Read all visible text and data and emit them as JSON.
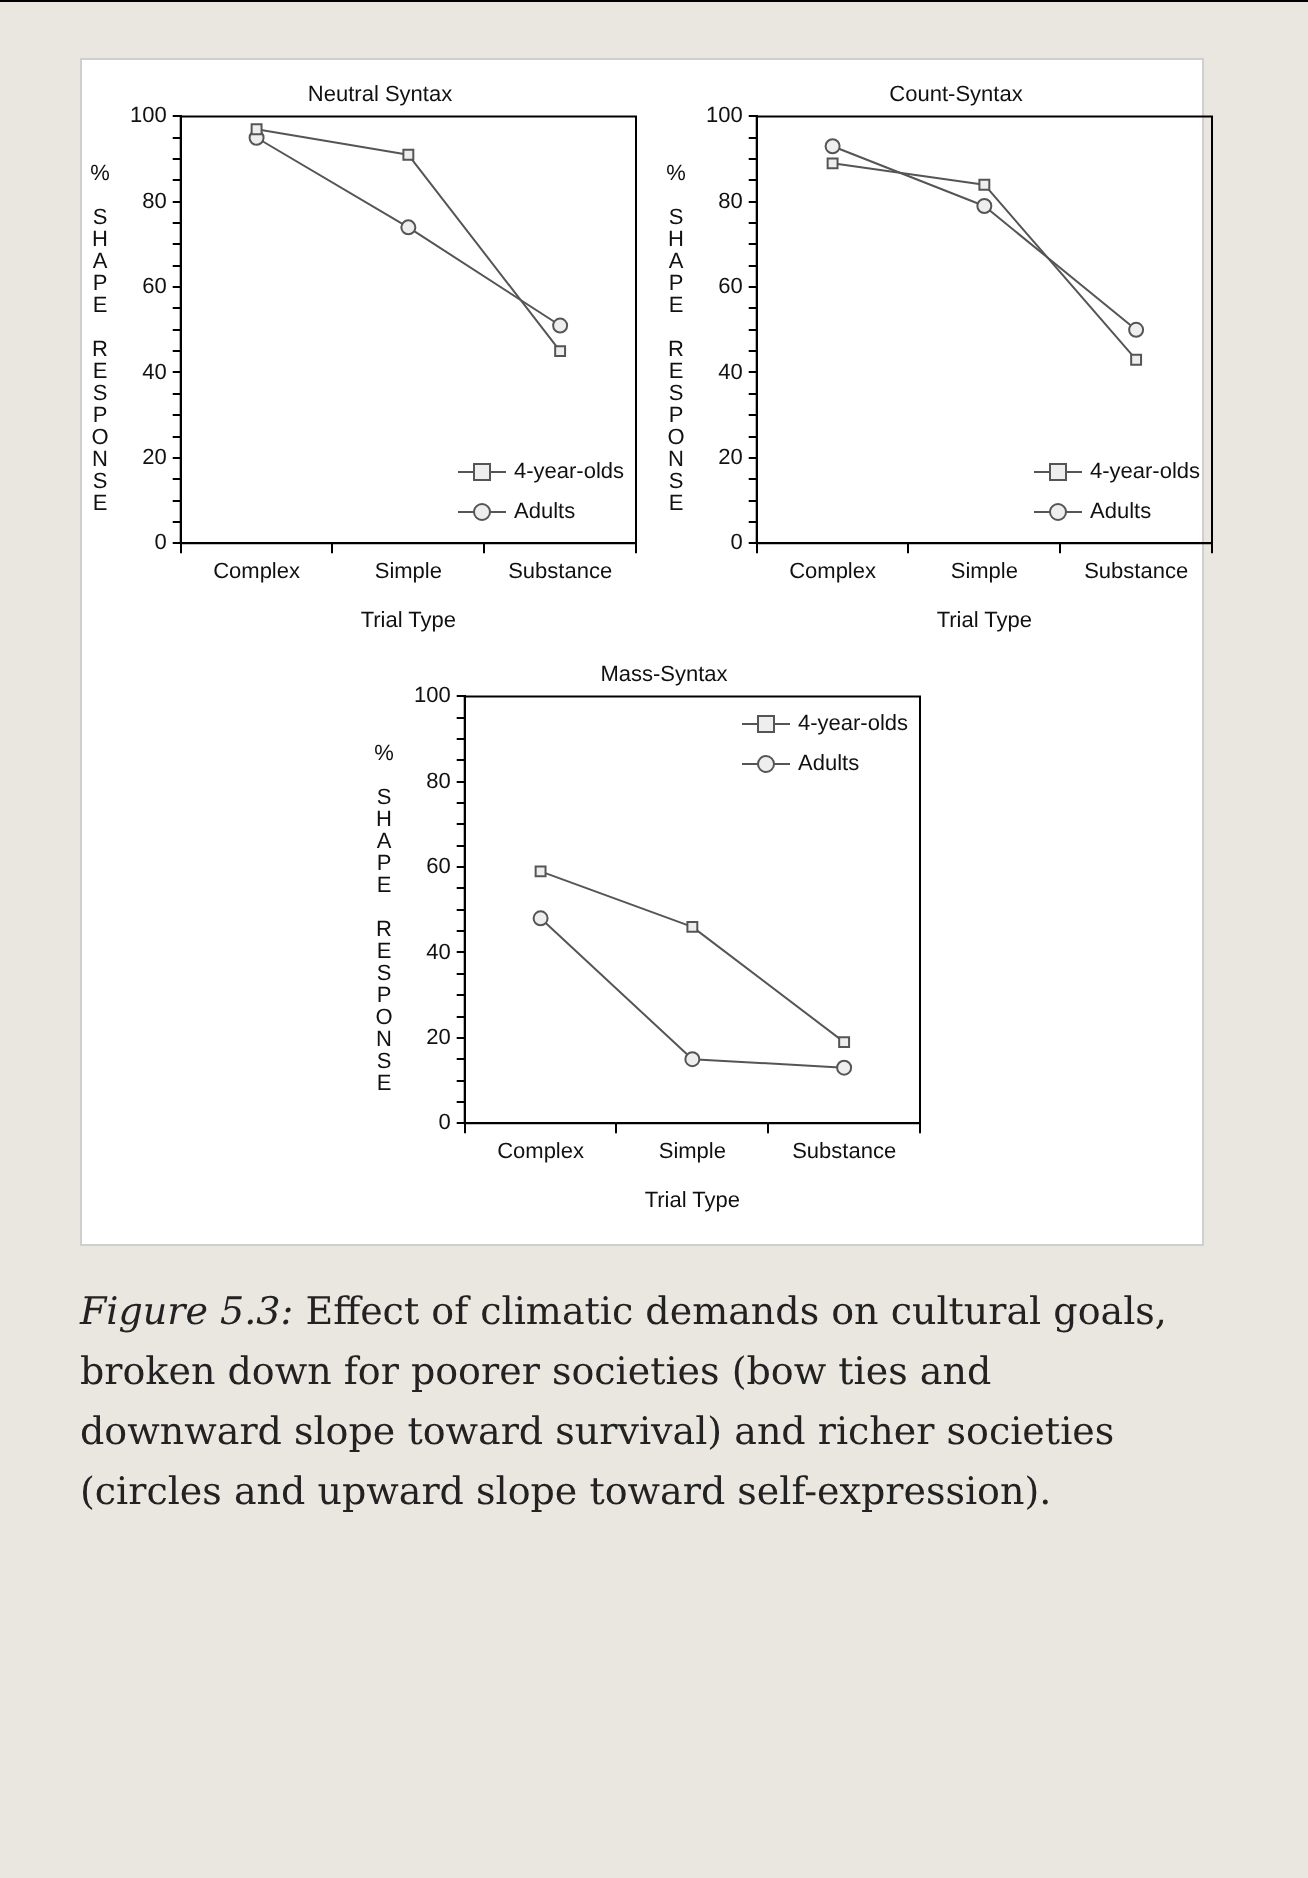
{
  "chart_data": [
    {
      "type": "line",
      "title": "Neutral Syntax",
      "xlabel": "Trial Type",
      "ylabel": "% SHAPE RESPONSE",
      "categories": [
        "Complex",
        "Simple",
        "Substance"
      ],
      "series": [
        {
          "name": "4-year-olds",
          "color": "#555555",
          "marker": "square",
          "values": [
            97,
            91,
            45
          ]
        },
        {
          "name": "Adults",
          "color": "#555555",
          "marker": "circle",
          "values": [
            95,
            74,
            51
          ]
        }
      ],
      "ylim": [
        0,
        100
      ],
      "yticks": [
        0,
        {
          "value": 5,
          "label": null
        },
        {
          "value": 10,
          "label": null
        },
        {
          "value": 15,
          "label": null
        },
        20,
        {
          "value": 25,
          "label": null
        },
        {
          "value": 30,
          "label": null
        },
        {
          "value": 35,
          "label": null
        },
        40,
        {
          "value": 45,
          "label": null
        },
        {
          "value": 50,
          "label": null
        },
        {
          "value": 55,
          "label": null
        },
        60,
        {
          "value": 65,
          "label": null
        },
        {
          "value": 70,
          "label": null
        },
        {
          "value": 75,
          "label": null
        },
        80,
        {
          "value": 85,
          "label": null
        },
        {
          "value": 90,
          "label": null
        },
        {
          "value": 95,
          "label": null
        },
        100
      ],
      "grid": false,
      "legend": "bottom right"
    },
    {
      "type": "line",
      "title": "Count-Syntax",
      "xlabel": "Trial Type",
      "ylabel": "% SHAPE RESPONSE",
      "categories": [
        "Complex",
        "Simple",
        "Substance"
      ],
      "series": [
        {
          "name": "4-year-olds",
          "color": "#555555",
          "marker": "square",
          "values": [
            89,
            84,
            43
          ]
        },
        {
          "name": "Adults",
          "color": "#555555",
          "marker": "circle",
          "values": [
            93,
            79,
            50
          ]
        }
      ],
      "ylim": [
        0,
        100
      ],
      "yticks": [
        0,
        {
          "value": 5,
          "label": null
        },
        {
          "value": 10,
          "label": null
        },
        {
          "value": 15,
          "label": null
        },
        20,
        {
          "value": 25,
          "label": null
        },
        {
          "value": 30,
          "label": null
        },
        {
          "value": 35,
          "label": null
        },
        40,
        {
          "value": 45,
          "label": null
        },
        {
          "value": 50,
          "label": null
        },
        {
          "value": 55,
          "label": null
        },
        60,
        {
          "value": 65,
          "label": null
        },
        {
          "value": 70,
          "label": null
        },
        {
          "value": 75,
          "label": null
        },
        80,
        {
          "value": 85,
          "label": null
        },
        {
          "value": 90,
          "label": null
        },
        {
          "value": 95,
          "label": null
        },
        100
      ],
      "grid": false,
      "legend": "bottom right"
    },
    {
      "type": "line",
      "title": "Mass-Syntax",
      "xlabel": "Trial Type",
      "ylabel": "% SHAPE RESPONSE",
      "categories": [
        "Complex",
        "Simple",
        "Substance"
      ],
      "series": [
        {
          "name": "4-year-olds",
          "color": "#555555",
          "marker": "square",
          "values": [
            59,
            46,
            19
          ]
        },
        {
          "name": "Adults",
          "color": "#555555",
          "marker": "circle",
          "values": [
            48,
            15,
            13
          ]
        }
      ],
      "ylim": [
        0,
        100
      ],
      "yticks": [
        0,
        {
          "value": 5,
          "label": null
        },
        {
          "value": 10,
          "label": null
        },
        {
          "value": 15,
          "label": null
        },
        20,
        {
          "value": 25,
          "label": null
        },
        {
          "value": 30,
          "label": null
        },
        {
          "value": 35,
          "label": null
        },
        40,
        {
          "value": 45,
          "label": null
        },
        {
          "value": 50,
          "label": null
        },
        {
          "value": 55,
          "label": null
        },
        60,
        {
          "value": 65,
          "label": null
        },
        {
          "value": 70,
          "label": null
        },
        {
          "value": 75,
          "label": null
        },
        80,
        {
          "value": 85,
          "label": null
        },
        {
          "value": 90,
          "label": null
        },
        {
          "value": 95,
          "label": null
        },
        100
      ],
      "grid": false,
      "legend": "top right",
      "annotations": [
        "Figure 5.3: Effect of climatic demands on cultural goals, broken down for poorer societies (bow ties and downward slope toward survival) and richer societies (circles and upward slope toward self-expression)."
      ]
    }
  ]
}
